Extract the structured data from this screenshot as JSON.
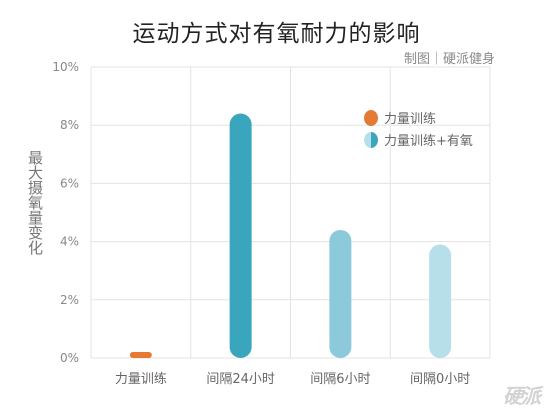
{
  "chart_data": {
    "type": "bar",
    "title": "运动方式对有氧耐力的影响",
    "credit": "制图｜硬派健身",
    "ylabel": "最大摄氧量变化",
    "ylim": [
      0,
      10
    ],
    "yticks": [
      "0%",
      "2%",
      "4%",
      "6%",
      "8%",
      "10%"
    ],
    "categories": [
      "力量训练",
      "间隔24小时",
      "间隔6小时",
      "间隔0小时"
    ],
    "values": [
      0.1,
      8.4,
      4.4,
      3.9
    ],
    "bar_colors": [
      "#e57a34",
      "#3aa6bd",
      "#8ccadb",
      "#b7dfe9"
    ],
    "legend_position": "top-right",
    "legend": [
      {
        "label": "力量训练",
        "color": "#e57a34"
      },
      {
        "label": "力量训练+有氧",
        "color": "#3aa6bd",
        "color2": "#b7dfe9"
      }
    ],
    "grid": true
  },
  "watermark": "硬派"
}
